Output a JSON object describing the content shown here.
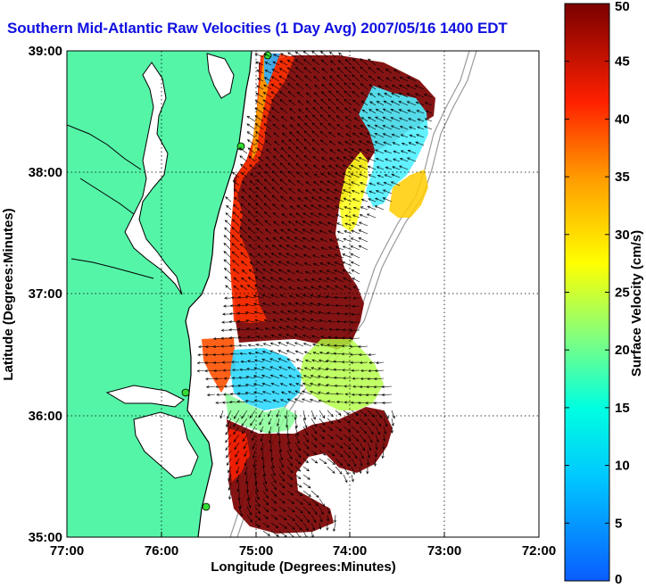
{
  "title": "Southern Mid-Atlantic Raw Velocities (1 Day Avg) 2007/05/16 1400 EDT",
  "map": {
    "xlabel": "Longitude (Degrees:Minutes)",
    "ylabel": "Latitude (Degrees:Minutes)",
    "x_ticks": [
      "77:00",
      "76:00",
      "75:00",
      "74:00",
      "73:00",
      "72:00"
    ],
    "y_ticks": [
      "39:00",
      "38:00",
      "37:00",
      "36:00",
      "35:00"
    ],
    "lon_range": [
      -77,
      -72
    ],
    "lat_range": [
      35,
      39
    ],
    "grid": "dotted",
    "land_color": "#55f5a8",
    "coast_color": "#000000",
    "bathymetry_color": "#9a9a9a",
    "station_color": "#33dd33"
  },
  "colorbar": {
    "label": "Surface Velocity (cm/s)",
    "ticks": [
      "50",
      "45",
      "40",
      "35",
      "30",
      "25",
      "20",
      "15",
      "10",
      "5",
      "0"
    ],
    "range": [
      0,
      50
    ],
    "colormap": "jet"
  }
}
